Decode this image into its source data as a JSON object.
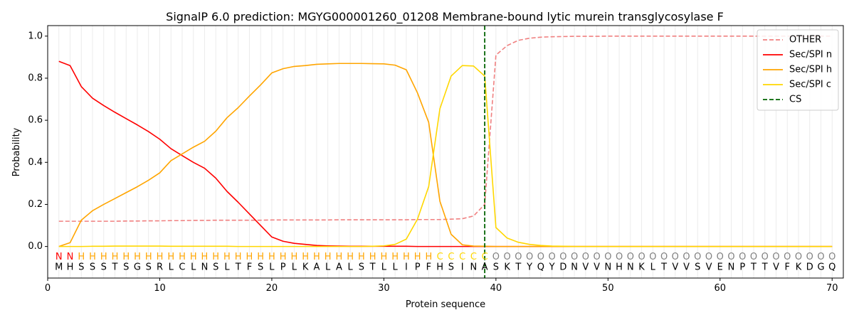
{
  "chart_data": {
    "type": "line",
    "title": "SignalP 6.0 prediction: MGYG000001260_01208 Membrane-bound lytic murein transglycosylase F",
    "xlabel": "Protein sequence",
    "ylabel": "Probability",
    "xlim": [
      0,
      71
    ],
    "ylim": [
      -0.15,
      1.05
    ],
    "xticks": [
      0,
      10,
      20,
      30,
      40,
      50,
      60,
      70
    ],
    "yticks": [
      0.0,
      0.2,
      0.4,
      0.6,
      0.8,
      1.0
    ],
    "grid": "vertical at every residue",
    "legend_position": "top-right",
    "sequence": "MHSSSTSGSRLCLNSLTFSLPLKALALSTLLIPFHSINASKTYQYDNVVNHNKLTVVSVENPTTVFKDGQ",
    "region_labels": "NNHHHHHHHHHHHHHHHHHHHHHHHHHHHHHHHHCCCCCOOOOOOOOOOOOOOOOOOOOOOOOOOOOOOO",
    "region_colors": {
      "N": "#ff0000",
      "H": "#ffa500",
      "C": "#ffd700",
      "O": "#808080"
    },
    "x": [
      1,
      2,
      3,
      4,
      5,
      6,
      7,
      8,
      9,
      10,
      11,
      12,
      13,
      14,
      15,
      16,
      17,
      18,
      19,
      20,
      21,
      22,
      23,
      24,
      25,
      26,
      27,
      28,
      29,
      30,
      31,
      32,
      33,
      34,
      35,
      36,
      37,
      38,
      39,
      40,
      41,
      42,
      43,
      44,
      45,
      46,
      47,
      48,
      49,
      50,
      51,
      52,
      53,
      54,
      55,
      56,
      57,
      58,
      59,
      60,
      61,
      62,
      63,
      64,
      65,
      66,
      67,
      68,
      69,
      70
    ],
    "series": [
      {
        "name": "OTHER",
        "color": "#f08080",
        "dash": "dashed",
        "values": [
          0.12,
          0.12,
          0.12,
          0.12,
          0.12,
          0.12,
          0.121,
          0.121,
          0.122,
          0.122,
          0.123,
          0.123,
          0.124,
          0.124,
          0.125,
          0.125,
          0.125,
          0.125,
          0.125,
          0.126,
          0.126,
          0.126,
          0.126,
          0.126,
          0.126,
          0.127,
          0.127,
          0.127,
          0.127,
          0.127,
          0.127,
          0.127,
          0.128,
          0.128,
          0.128,
          0.13,
          0.132,
          0.145,
          0.2,
          0.91,
          0.955,
          0.98,
          0.99,
          0.995,
          0.997,
          0.998,
          0.999,
          0.999,
          0.999,
          1.0,
          1.0,
          1.0,
          1.0,
          1.0,
          1.0,
          1.0,
          1.0,
          1.0,
          1.0,
          1.0,
          1.0,
          1.0,
          1.0,
          1.0,
          1.0,
          1.0,
          1.0,
          1.0,
          1.0,
          1.0
        ]
      },
      {
        "name": "Sec/SPI n",
        "color": "#ff0000",
        "dash": "solid",
        "values": [
          0.88,
          0.86,
          0.76,
          0.705,
          0.67,
          0.638,
          0.608,
          0.578,
          0.546,
          0.51,
          0.465,
          0.432,
          0.4,
          0.372,
          0.325,
          0.262,
          0.21,
          0.155,
          0.1,
          0.045,
          0.025,
          0.015,
          0.01,
          0.005,
          0.003,
          0.002,
          0.001,
          0.001,
          0.001,
          0.001,
          0.001,
          0.001,
          0.0,
          0.0,
          0.0,
          0.0,
          0.0,
          0.0,
          0.0,
          0.0,
          0.0,
          0.0,
          0.0,
          0.0,
          0.0,
          0.0,
          0.0,
          0.0,
          0.0,
          0.0,
          0.0,
          0.0,
          0.0,
          0.0,
          0.0,
          0.0,
          0.0,
          0.0,
          0.0,
          0.0,
          0.0,
          0.0,
          0.0,
          0.0,
          0.0,
          0.0,
          0.0,
          0.0,
          0.0,
          0.0
        ]
      },
      {
        "name": "Sec/SPI h",
        "color": "#ffa500",
        "dash": "solid",
        "values": [
          0.0,
          0.018,
          0.125,
          0.17,
          0.2,
          0.228,
          0.256,
          0.284,
          0.315,
          0.35,
          0.408,
          0.44,
          0.472,
          0.5,
          0.548,
          0.612,
          0.66,
          0.715,
          0.768,
          0.825,
          0.845,
          0.856,
          0.86,
          0.866,
          0.868,
          0.87,
          0.87,
          0.87,
          0.869,
          0.868,
          0.862,
          0.84,
          0.73,
          0.59,
          0.215,
          0.058,
          0.008,
          0.002,
          0.001,
          0.0,
          0.0,
          0.0,
          0.0,
          0.0,
          0.0,
          0.0,
          0.0,
          0.0,
          0.0,
          0.0,
          0.0,
          0.0,
          0.0,
          0.0,
          0.0,
          0.0,
          0.0,
          0.0,
          0.0,
          0.0,
          0.0,
          0.0,
          0.0,
          0.0,
          0.0,
          0.0,
          0.0,
          0.0,
          0.0,
          0.0
        ]
      },
      {
        "name": "Sec/SPI c",
        "color": "#ffd700",
        "dash": "solid",
        "values": [
          0.0,
          0.0,
          0.0,
          0.001,
          0.001,
          0.002,
          0.002,
          0.002,
          0.002,
          0.002,
          0.001,
          0.001,
          0.001,
          0.001,
          0.001,
          0.001,
          0.0,
          0.0,
          0.0,
          0.0,
          0.0,
          0.0,
          0.0,
          0.0,
          0.0,
          0.0,
          0.0,
          0.0,
          0.001,
          0.003,
          0.01,
          0.035,
          0.13,
          0.285,
          0.655,
          0.81,
          0.86,
          0.858,
          0.81,
          0.09,
          0.04,
          0.02,
          0.01,
          0.005,
          0.002,
          0.001,
          0.0,
          0.0,
          0.0,
          0.0,
          0.0,
          0.0,
          0.0,
          0.0,
          0.0,
          0.0,
          0.0,
          0.0,
          0.0,
          0.0,
          0.0,
          0.0,
          0.0,
          0.0,
          0.0,
          0.0,
          0.0,
          0.0,
          0.0,
          0.0
        ]
      }
    ],
    "cleavage_site": {
      "name": "CS",
      "x": 39,
      "color": "#006400",
      "dash": "dashed"
    }
  }
}
